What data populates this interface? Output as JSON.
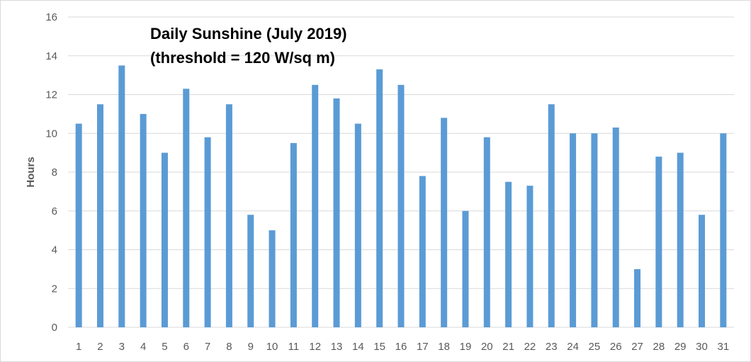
{
  "chart_data": {
    "type": "bar",
    "title_lines": [
      "Daily Sunshine (July 2019)",
      "(threshold = 120 W/sq m)"
    ],
    "xlabel": "",
    "ylabel": "Hours",
    "ylim": [
      0,
      16
    ],
    "yticks": [
      0,
      2,
      4,
      6,
      8,
      10,
      12,
      14,
      16
    ],
    "grid": true,
    "legend": "none",
    "bar_color": "#5b9bd5",
    "grid_color": "#d9d9d9",
    "categories": [
      "1",
      "2",
      "3",
      "4",
      "5",
      "6",
      "7",
      "8",
      "9",
      "10",
      "11",
      "12",
      "13",
      "14",
      "15",
      "16",
      "17",
      "18",
      "19",
      "20",
      "21",
      "22",
      "23",
      "24",
      "25",
      "26",
      "27",
      "28",
      "29",
      "30",
      "31"
    ],
    "values": [
      10.5,
      11.5,
      13.5,
      11.0,
      9.0,
      12.3,
      9.8,
      11.5,
      5.8,
      5.0,
      9.5,
      12.5,
      11.8,
      10.5,
      13.3,
      12.5,
      7.8,
      10.8,
      6.0,
      9.8,
      7.5,
      7.3,
      11.5,
      10.0,
      10.0,
      10.3,
      3.0,
      8.8,
      9.0,
      5.8,
      10.0
    ]
  }
}
